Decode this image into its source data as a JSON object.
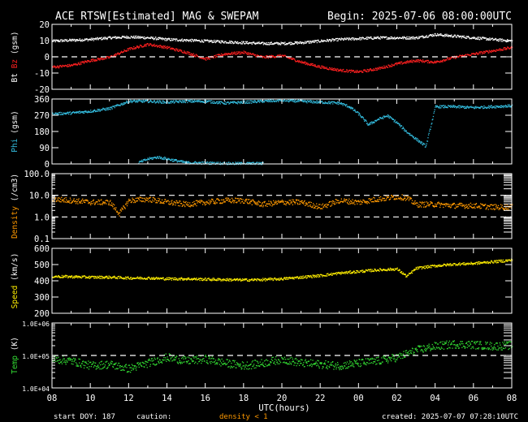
{
  "header": {
    "title": "ACE RTSW[Estimated] MAG & SWEPAM",
    "begin": "Begin: 2025-07-06 08:00:00UTC"
  },
  "footer": {
    "start_doy": "start DOY: 187",
    "caution": "caution:",
    "density_note": "density < 1",
    "created": "created: 2025-07-07 07:28:10UTC"
  },
  "colors": {
    "bt": "#ffffff",
    "bz": "#ff2020",
    "phi": "#33bbdd",
    "density": "#ff9900",
    "speed": "#ffee00",
    "temp": "#33dd33",
    "frame": "#ffffff"
  },
  "chart_data": {
    "type": "scatter",
    "x_axis": {
      "label": "UTC(hours)",
      "ticks": [
        "08",
        "10",
        "12",
        "14",
        "16",
        "18",
        "20",
        "22",
        "00",
        "02",
        "04",
        "06",
        "08"
      ],
      "range_hours": [
        0,
        24
      ]
    },
    "panels": [
      {
        "id": "mag",
        "ylabel_parts": [
          {
            "text": "Bt",
            "color": "#ffffff"
          },
          {
            "text": "Bz",
            "color": "#ff2020"
          },
          {
            "text": "(gsm)",
            "color": "#ffffff"
          }
        ],
        "scale": "linear",
        "ylim": [
          -20,
          20
        ],
        "yticks": [
          "20",
          "10",
          "0",
          "-10",
          "-20"
        ],
        "ytick_values": [
          20,
          10,
          0,
          -10,
          -20
        ],
        "dashed_lines": [
          0
        ],
        "series": [
          {
            "name": "Bt",
            "color": "#ffffff",
            "x": [
              0,
              1,
              2,
              3,
              4,
              5,
              6,
              7,
              8,
              9,
              10,
              11,
              12,
              13,
              14,
              15,
              16,
              17,
              18,
              19,
              20,
              21,
              22,
              23,
              24
            ],
            "y": [
              10,
              10.5,
              11,
              12,
              12.5,
              12,
              11,
              10.5,
              10,
              9.5,
              9,
              8.5,
              8.5,
              9,
              10,
              11,
              11.5,
              12,
              12,
              12,
              14,
              13,
              12,
              11,
              10
            ]
          },
          {
            "name": "Bz",
            "color": "#ff2020",
            "x": [
              0,
              1,
              2,
              3,
              4,
              5,
              6,
              7,
              8,
              9,
              10,
              11,
              12,
              13,
              14,
              15,
              16,
              17,
              18,
              19,
              20,
              21,
              22,
              23,
              24
            ],
            "y": [
              -6,
              -5,
              -2,
              0,
              5,
              8,
              6,
              3,
              -1,
              2,
              3,
              0,
              1,
              -3,
              -6,
              -8,
              -9,
              -7,
              -4,
              -2,
              -3,
              0,
              2,
              4,
              6
            ]
          }
        ]
      },
      {
        "id": "phi",
        "ylabel_parts": [
          {
            "text": "Phi",
            "color": "#33bbdd"
          },
          {
            "text": "(gsm)",
            "color": "#ffffff"
          }
        ],
        "scale": "linear",
        "ylim": [
          0,
          360
        ],
        "yticks": [
          "360",
          "270",
          "180",
          "90",
          "0"
        ],
        "ytick_values": [
          360,
          270,
          180,
          90,
          0
        ],
        "dashed_lines": [],
        "series": [
          {
            "name": "Phi",
            "color": "#33bbdd",
            "x": [
              0,
              1,
              2,
              3,
              4,
              5,
              6,
              7,
              8,
              9,
              10,
              11,
              12,
              13,
              14,
              15,
              15.5,
              16,
              16.5,
              17,
              17.5,
              18,
              18.5,
              19,
              19.5,
              20,
              21,
              22,
              23,
              24
            ],
            "y": [
              280,
              285,
              295,
              310,
              350,
              350,
              345,
              350,
              350,
              340,
              345,
              350,
              355,
              350,
              345,
              340,
              320,
              280,
              220,
              250,
              270,
              230,
              180,
              140,
              100,
              320,
              320,
              315,
              320,
              325
            ]
          },
          {
            "name": "Phi",
            "color": "#33bbdd",
            "x": [
              4.5,
              5,
              5.5,
              6,
              6.5,
              7,
              9,
              11
            ],
            "y": [
              10,
              30,
              40,
              30,
              20,
              10,
              5,
              5
            ]
          }
        ]
      },
      {
        "id": "density",
        "ylabel_parts": [
          {
            "text": "Density",
            "color": "#ff9900"
          },
          {
            "text": "(/cm3)",
            "color": "#ffffff"
          }
        ],
        "scale": "log",
        "ylim": [
          0.1,
          100
        ],
        "yticks": [
          "100.0",
          "10.0",
          "1.0",
          "0.1"
        ],
        "ytick_values": [
          100,
          10,
          1,
          0.1
        ],
        "dashed_lines": [
          1,
          10
        ],
        "series": [
          {
            "name": "Density",
            "color": "#ff9900",
            "x": [
              0,
              1,
              2,
              3,
              3.5,
              4,
              5,
              6,
              7,
              8,
              9,
              10,
              11,
              12,
              13,
              14,
              15,
              16,
              17,
              18,
              18.5,
              19,
              20,
              21,
              22,
              23,
              24
            ],
            "y": [
              7,
              6,
              5,
              5,
              1.5,
              6,
              7,
              5,
              4,
              5,
              6,
              6,
              4,
              5,
              5,
              3,
              6,
              5,
              7,
              9,
              8,
              4,
              4,
              3.5,
              3.5,
              3,
              3
            ]
          }
        ]
      },
      {
        "id": "speed",
        "ylabel_parts": [
          {
            "text": "Speed",
            "color": "#ffee00"
          },
          {
            "text": "(km/s)",
            "color": "#ffffff"
          }
        ],
        "scale": "linear",
        "ylim": [
          200,
          600
        ],
        "yticks": [
          "600",
          "500",
          "400",
          "300",
          "200"
        ],
        "ytick_values": [
          600,
          500,
          400,
          300,
          200
        ],
        "dashed_lines": [],
        "series": [
          {
            "name": "Speed",
            "color": "#ffee00",
            "x": [
              0,
              1,
              2,
              3,
              4,
              5,
              6,
              7,
              8,
              9,
              10,
              11,
              12,
              13,
              14,
              15,
              16,
              17,
              18,
              18.5,
              19,
              20,
              21,
              22,
              23,
              24
            ],
            "y": [
              430,
              428,
              425,
              425,
              420,
              420,
              415,
              415,
              412,
              410,
              408,
              410,
              415,
              425,
              435,
              450,
              460,
              470,
              475,
              430,
              480,
              495,
              505,
              510,
              520,
              530
            ]
          }
        ]
      },
      {
        "id": "temp",
        "ylabel_parts": [
          {
            "text": "Temp",
            "color": "#33dd33"
          },
          {
            "text": "(K)",
            "color": "#ffffff"
          }
        ],
        "scale": "log",
        "ylim": [
          10000,
          1000000
        ],
        "yticks": [
          "1.0E+06",
          "1.0E+05",
          "1.0E+04"
        ],
        "ytick_values": [
          1000000,
          100000,
          10000
        ],
        "dashed_lines": [
          100000
        ],
        "series": [
          {
            "name": "Temp",
            "color": "#33dd33",
            "x": [
              0,
              1,
              2,
              3,
              4,
              5,
              6,
              7,
              8,
              9,
              10,
              11,
              12,
              13,
              14,
              15,
              16,
              17,
              18,
              19,
              20,
              21,
              22,
              23,
              24
            ],
            "y": [
              80000,
              70000,
              50000,
              55000,
              40000,
              60000,
              90000,
              70000,
              80000,
              60000,
              50000,
              60000,
              80000,
              60000,
              55000,
              50000,
              60000,
              70000,
              90000,
              150000,
              200000,
              230000,
              220000,
              200000,
              210000
            ]
          }
        ]
      }
    ]
  }
}
